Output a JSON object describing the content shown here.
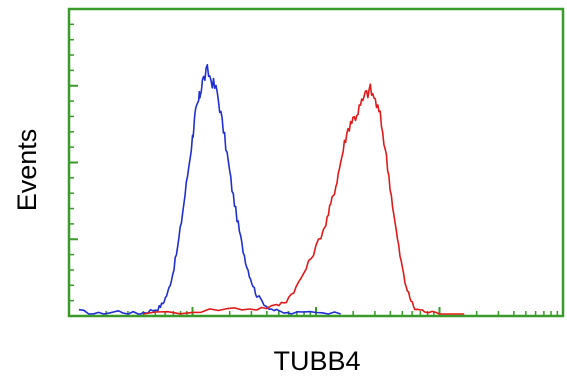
{
  "chart_data": {
    "type": "line",
    "title": "",
    "xlabel": "TUBB4",
    "ylabel": "Events",
    "x_scale": "log",
    "xlim": [
      0,
      1
    ],
    "ylim": [
      0,
      1
    ],
    "grid": false,
    "legend": "none",
    "colors": {
      "axis": "#3a9a2a",
      "series_1": "#1f2fd0",
      "series_2": "#e01a1a"
    },
    "series": [
      {
        "color": "#1f2fd0",
        "x": [
          0.02,
          0.06,
          0.1,
          0.14,
          0.16,
          0.18,
          0.19,
          0.2,
          0.21,
          0.22,
          0.23,
          0.24,
          0.25,
          0.255,
          0.26,
          0.265,
          0.27,
          0.28,
          0.29,
          0.3,
          0.31,
          0.32,
          0.33,
          0.34,
          0.35,
          0.36,
          0.37,
          0.38,
          0.4,
          0.42,
          0.45,
          0.5,
          0.55
        ],
        "y": [
          0.01,
          0.0,
          0.01,
          0.0,
          0.01,
          0.02,
          0.04,
          0.08,
          0.15,
          0.25,
          0.38,
          0.52,
          0.66,
          0.74,
          0.78,
          0.82,
          0.87,
          0.91,
          0.87,
          0.83,
          0.72,
          0.6,
          0.47,
          0.36,
          0.26,
          0.18,
          0.12,
          0.07,
          0.03,
          0.01,
          0.0,
          0.01,
          0.0
        ]
      },
      {
        "color": "#e01a1a",
        "x": [
          0.15,
          0.25,
          0.32,
          0.38,
          0.42,
          0.44,
          0.46,
          0.48,
          0.5,
          0.52,
          0.53,
          0.54,
          0.55,
          0.56,
          0.57,
          0.58,
          0.59,
          0.6,
          0.61,
          0.62,
          0.63,
          0.64,
          0.65,
          0.66,
          0.67,
          0.68,
          0.69,
          0.7,
          0.72,
          0.75,
          0.8
        ],
        "y": [
          0.0,
          0.01,
          0.02,
          0.02,
          0.03,
          0.05,
          0.1,
          0.17,
          0.25,
          0.34,
          0.41,
          0.48,
          0.57,
          0.66,
          0.72,
          0.74,
          0.78,
          0.82,
          0.84,
          0.8,
          0.74,
          0.62,
          0.48,
          0.34,
          0.22,
          0.12,
          0.06,
          0.02,
          0.01,
          0.0,
          0.0
        ]
      }
    ]
  }
}
